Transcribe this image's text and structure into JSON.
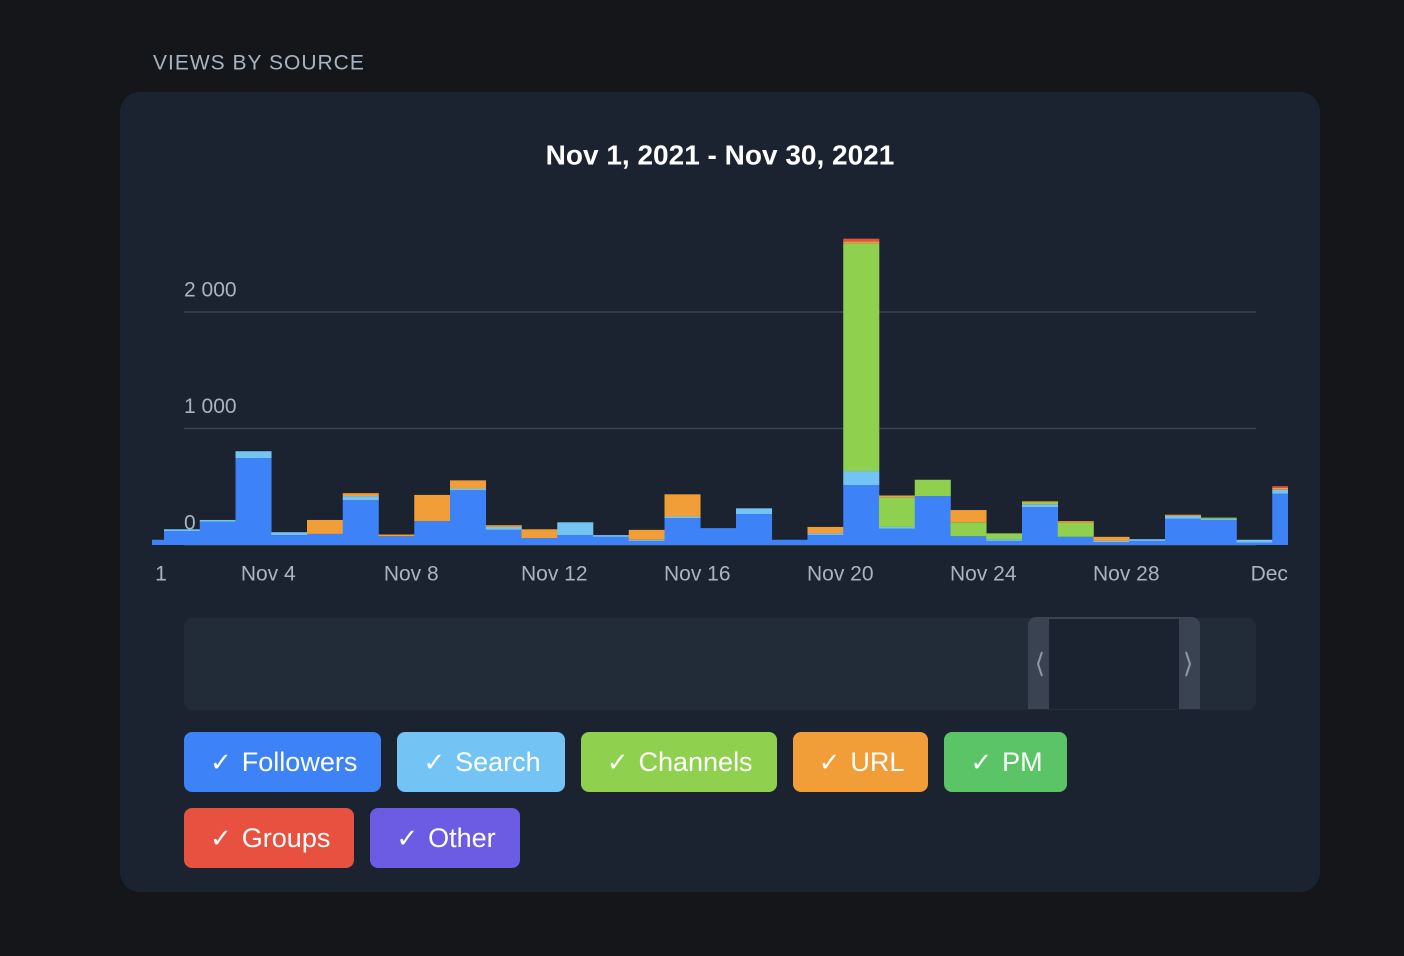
{
  "section_title": "VIEWS BY SOURCE",
  "chart_data": {
    "type": "stacked-bar",
    "title": "Nov 1, 2021 - Nov 30, 2021",
    "categories": [
      null,
      "1",
      null,
      null,
      "Nov 4",
      null,
      null,
      null,
      "Nov 8",
      null,
      null,
      null,
      "Nov 12",
      null,
      null,
      null,
      "Nov 16",
      null,
      null,
      null,
      "Nov 20",
      null,
      null,
      null,
      "Nov 24",
      null,
      null,
      null,
      "Nov 28",
      null,
      null,
      null,
      "Dec"
    ],
    "series": [
      {
        "name": "Followers",
        "color": "#3e82f7",
        "values": [
          45,
          120,
          200,
          745,
          85,
          95,
          385,
          75,
          205,
          470,
          130,
          60,
          85,
          70,
          35,
          230,
          145,
          265,
          45,
          85,
          515,
          140,
          420,
          75,
          35,
          325,
          70,
          25,
          35,
          225,
          215,
          20,
          440
        ]
      },
      {
        "name": "Search",
        "color": "#73c3f5",
        "values": [
          0,
          15,
          15,
          60,
          25,
          0,
          35,
          0,
          0,
          15,
          25,
          0,
          110,
          15,
          10,
          15,
          0,
          50,
          0,
          15,
          120,
          15,
          0,
          0,
          15,
          25,
          0,
          10,
          15,
          25,
          10,
          25,
          35
        ]
      },
      {
        "name": "Channels",
        "color": "#8fd14f",
        "values": [
          0,
          0,
          0,
          0,
          0,
          0,
          0,
          0,
          0,
          0,
          0,
          0,
          0,
          0,
          0,
          0,
          0,
          0,
          0,
          0,
          1955,
          255,
          140,
          120,
          50,
          15,
          120,
          0,
          0,
          0,
          10,
          0,
          0
        ]
      },
      {
        "name": "URL",
        "color": "#f19d38",
        "values": [
          0,
          0,
          0,
          0,
          0,
          120,
          25,
          15,
          225,
          70,
          15,
          75,
          0,
          0,
          85,
          190,
          0,
          0,
          0,
          55,
          15,
          15,
          0,
          105,
          0,
          10,
          15,
          35,
          0,
          10,
          0,
          0,
          15
        ]
      },
      {
        "name": "PM",
        "color": "#5bc466",
        "values": [
          0,
          0,
          0,
          0,
          0,
          0,
          0,
          0,
          0,
          0,
          0,
          0,
          0,
          0,
          0,
          0,
          0,
          0,
          0,
          0,
          0,
          0,
          0,
          0,
          0,
          0,
          0,
          0,
          0,
          0,
          0,
          0,
          0
        ]
      },
      {
        "name": "Groups",
        "color": "#e8503f",
        "values": [
          0,
          0,
          0,
          0,
          0,
          0,
          0,
          0,
          0,
          0,
          0,
          0,
          0,
          0,
          0,
          0,
          0,
          0,
          0,
          0,
          25,
          0,
          0,
          0,
          0,
          0,
          0,
          0,
          0,
          0,
          0,
          0,
          15
        ]
      },
      {
        "name": "Other",
        "color": "#6c5ce4",
        "values": [
          0,
          0,
          0,
          0,
          0,
          0,
          0,
          0,
          0,
          0,
          0,
          0,
          0,
          0,
          0,
          0,
          0,
          0,
          0,
          0,
          0,
          0,
          0,
          0,
          0,
          0,
          0,
          0,
          0,
          0,
          0,
          0,
          0
        ]
      }
    ],
    "ylim": [
      0,
      2700
    ],
    "yticks": [
      0,
      {
        "value": 1000,
        "label": "1 000"
      },
      {
        "value": 2000,
        "label": "2 000"
      }
    ],
    "grid": true
  }
}
